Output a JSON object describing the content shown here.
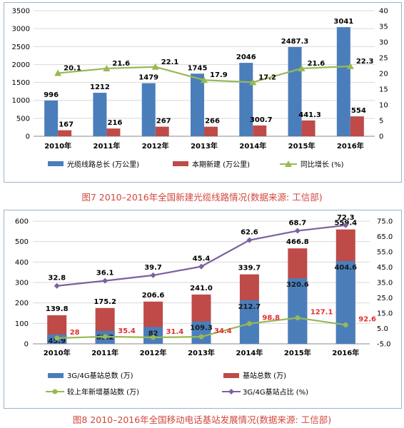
{
  "figures": [
    {
      "caption": "图7 2010–2016年全国新建光缆线路情况(数据来源: 工信部)",
      "colors": {
        "blue": "#4a7ebb",
        "red": "#be4b48",
        "green": "#98b954"
      }
    },
    {
      "caption": "图8 2010–2016年全国移动电话基站发展情况(数据来源: 工信部)",
      "colors": {
        "blue": "#4a7ebb",
        "red": "#be4b48",
        "green": "#98b954",
        "purple": "#7d60a0",
        "red_label": "#e03030"
      }
    }
  ],
  "chart_data": [
    {
      "type": "bar",
      "categories": [
        "2010年",
        "2011年",
        "2012年",
        "2013年",
        "2014年",
        "2015年",
        "2016年"
      ],
      "ylim": [
        0,
        3500
      ],
      "yticks": [
        0,
        500,
        1000,
        1500,
        2000,
        2500,
        3000,
        3500
      ],
      "y2lim": [
        0,
        40
      ],
      "y2ticks": [
        0,
        5,
        10,
        15,
        20,
        25,
        30,
        35,
        40
      ],
      "legend_position": "bottom",
      "grid": true,
      "series": [
        {
          "name": "光缆线路总长 (万公里)",
          "type": "bar",
          "values": [
            996,
            1212,
            1479,
            1745,
            2046,
            2487.3,
            3041
          ],
          "labels": [
            "996",
            "1212",
            "1479",
            "1745",
            "2046",
            "2487.3",
            "3041"
          ]
        },
        {
          "name": "本期新建 (万公里)",
          "type": "bar",
          "values": [
            167,
            216,
            267,
            266,
            300.7,
            441.3,
            554
          ],
          "labels": [
            "167",
            "216",
            "267",
            "266",
            "300.7",
            "441.3",
            "554"
          ]
        },
        {
          "name": "同比增长 (%)",
          "type": "line",
          "axis": "right",
          "values": [
            20.1,
            21.6,
            22.1,
            17.9,
            17.2,
            21.6,
            22.3
          ],
          "labels": [
            "20.1",
            "21.6",
            "22.1",
            "17.9",
            "17.2",
            "21.6",
            "22.3"
          ]
        }
      ]
    },
    {
      "type": "bar",
      "stacked": true,
      "categories": [
        "2010年",
        "2011年",
        "2012年",
        "2013年",
        "2014年",
        "2015年",
        "2016年"
      ],
      "ylim": [
        0,
        600
      ],
      "yticks": [
        0,
        100,
        200,
        300,
        400,
        500,
        600
      ],
      "y2lim": [
        -5,
        75
      ],
      "y2ticks": [
        "-5.0",
        "5.0",
        "15.0",
        "25.0",
        "35.0",
        "45.0",
        "55.0",
        "65.0",
        "75.0"
      ],
      "legend_position": "bottom",
      "grid": true,
      "series": [
        {
          "name": "3G/4G基站总数 (万)",
          "type": "bar",
          "values": [
            45.9,
            63.2,
            82,
            109.3,
            212.7,
            320.6,
            404.6
          ],
          "labels": [
            "45.9",
            "63.2",
            "82",
            "109.3",
            "212.7",
            "320.6",
            "404.6"
          ]
        },
        {
          "name": "基站总数 (万)",
          "type": "bar",
          "values": [
            139.8,
            175.2,
            206.6,
            241.0,
            339.7,
            466.8,
            559.4
          ],
          "labels": [
            "139.8",
            "175.2",
            "206.6",
            "241.0",
            "339.7",
            "466.8",
            "559.4"
          ]
        },
        {
          "name": "较上年新增基站数 (万)",
          "type": "line",
          "values": [
            28,
            35.4,
            31.4,
            34.4,
            98.8,
            127.1,
            92.6
          ],
          "labels": [
            "28",
            "35.4",
            "31.4",
            "34.4",
            "98.8",
            "127.1",
            "92.6"
          ]
        },
        {
          "name": "3G/4G基站占比 (%)",
          "type": "line",
          "axis": "right",
          "values": [
            32.8,
            36.1,
            39.7,
            45.4,
            62.6,
            68.7,
            72.3
          ],
          "labels": [
            "32.8",
            "36.1",
            "39.7",
            "45.4",
            "62.6",
            "68.7",
            "72.3"
          ]
        }
      ]
    }
  ]
}
